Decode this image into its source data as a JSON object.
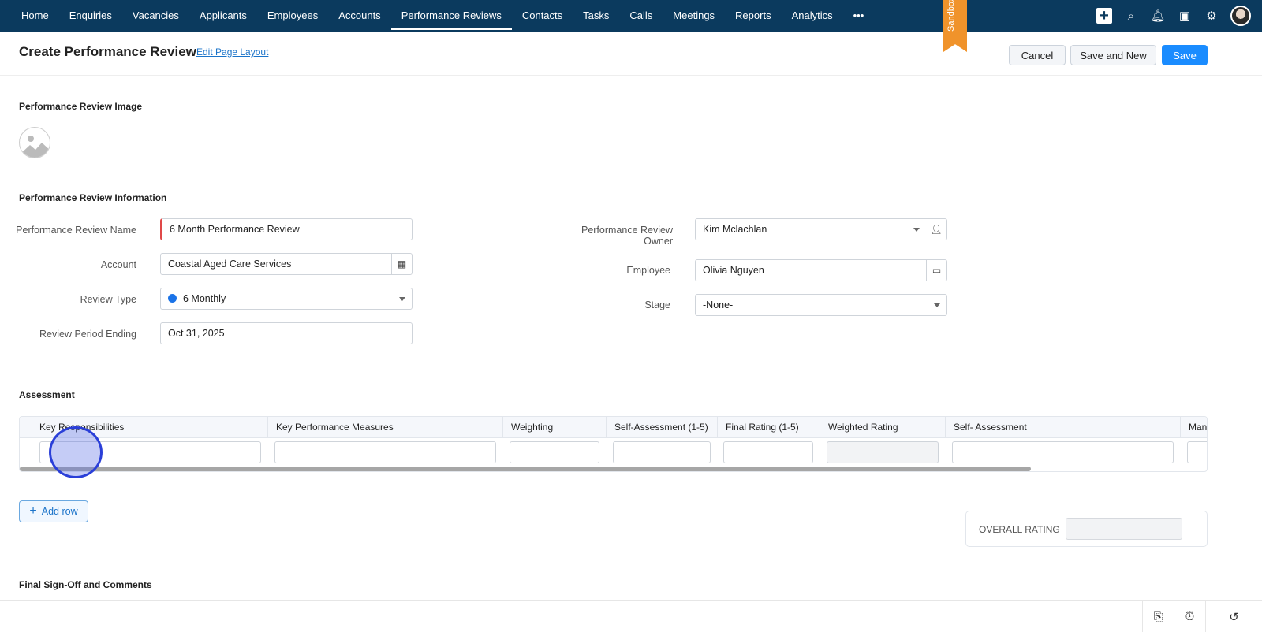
{
  "nav": {
    "items": [
      "Home",
      "Enquiries",
      "Vacancies",
      "Applicants",
      "Employees",
      "Accounts",
      "Performance Reviews",
      "Contacts",
      "Tasks",
      "Calls",
      "Meetings",
      "Reports",
      "Analytics",
      "•••"
    ],
    "active": "Performance Reviews",
    "sandbox": "Sandbox",
    "icons": [
      "plus-icon",
      "search-icon",
      "bell-icon",
      "calendar-icon",
      "gear-icon",
      "avatar"
    ]
  },
  "header": {
    "title": "Create Performance Review",
    "edit_link": "Edit Page Layout",
    "cancel": "Cancel",
    "save_new": "Save and New",
    "save": "Save"
  },
  "image_section": {
    "title": "Performance Review Image"
  },
  "info": {
    "title": "Performance Review Information",
    "name_label": "Performance Review Name",
    "name_value": "6 Month Performance Review",
    "account_label": "Account",
    "account_value": "Coastal Aged Care Services",
    "type_label": "Review Type",
    "type_value": "6 Monthly",
    "type_color": "#1a73e8",
    "period_label": "Review Period Ending",
    "period_value": "Oct 31, 2025",
    "owner_label": "Performance Review Owner",
    "owner_value": "Kim Mclachlan",
    "employee_label": "Employee",
    "employee_value": "Olivia Nguyen",
    "stage_label": "Stage",
    "stage_value": "-None-"
  },
  "assessment": {
    "title": "Assessment",
    "columns": [
      "Key Responsibilities",
      "Key Performance Measures",
      "Weighting",
      "Self-Assessment (1-5)",
      "Final Rating (1-5)",
      "Weighted Rating",
      "Self- Assessment",
      "Mana"
    ],
    "add_row": "Add row",
    "overall_label": "OVERALL RATING"
  },
  "final": {
    "title": "Final Sign-Off and Comments"
  },
  "footer": {
    "icons": [
      "notes-icon",
      "alarm-icon",
      "history-icon"
    ]
  },
  "colors": {
    "nav_bg": "#0b3a5e",
    "accent": "#1a8cff",
    "sandbox": "#f0932b"
  }
}
